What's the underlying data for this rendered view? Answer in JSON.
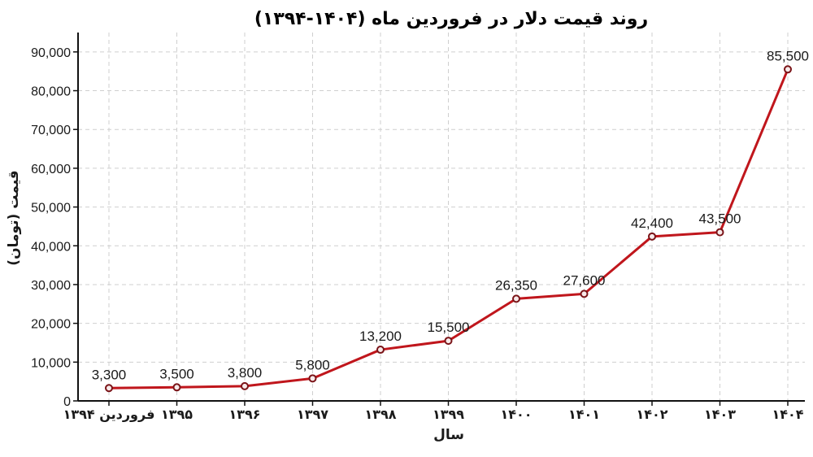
{
  "chart_data": {
    "type": "line",
    "title": "روند قیمت دلار در فروردین ماه (۱۴۰۴-۱۳۹۴)",
    "xlabel": "سال",
    "ylabel": "قیمت (تومان)",
    "categories": [
      "فروردین ۱۳۹۴",
      "۱۳۹۵",
      "۱۳۹۶",
      "۱۳۹۷",
      "۱۳۹۸",
      "۱۳۹۹",
      "۱۴۰۰",
      "۱۴۰۱",
      "۱۴۰۲",
      "۱۴۰۳",
      "۱۴۰۴"
    ],
    "values": [
      3300,
      3500,
      3800,
      5800,
      13200,
      15500,
      26350,
      27600,
      42400,
      43500,
      85500
    ],
    "data_labels": [
      "3,300",
      "3,500",
      "3,800",
      "5,800",
      "13,200",
      "15,500",
      "26,350",
      "27,600",
      "42,400",
      "43,500",
      "85,500"
    ],
    "ylim": [
      0,
      95000
    ],
    "yticks": [
      0,
      10000,
      20000,
      30000,
      40000,
      50000,
      60000,
      70000,
      80000,
      90000
    ],
    "ytick_labels": [
      "0",
      "10,000",
      "20,000",
      "30,000",
      "40,000",
      "50,000",
      "60,000",
      "70,000",
      "80,000",
      "90,000"
    ],
    "grid": true,
    "legend": null,
    "line_color": "#c0161c",
    "marker": "hollow-circle"
  }
}
